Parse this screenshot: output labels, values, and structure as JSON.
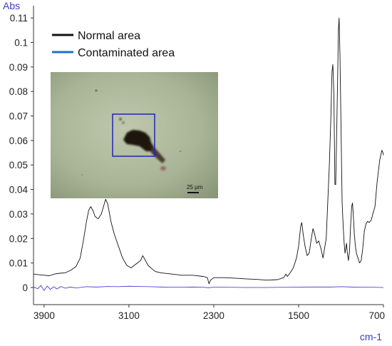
{
  "chart_data": {
    "type": "line",
    "ylabel": "Abs",
    "xlabel": "cm-1",
    "xlim": [
      4000,
      700
    ],
    "ylim": [
      -0.007,
      0.115
    ],
    "x_ticks": [
      3900,
      3100,
      2300,
      1500,
      700
    ],
    "y_ticks": [
      0,
      0.01,
      0.02,
      0.03,
      0.04,
      0.05,
      0.06,
      0.07,
      0.08,
      0.09,
      0.1,
      0.11
    ],
    "x_tick_labels": [
      "3900",
      "3100",
      "2300",
      "1500",
      "700"
    ],
    "y_tick_labels": [
      "0",
      "0.01",
      "0.02",
      "0.03",
      "0.04",
      "0.05",
      "0.06",
      "0.07",
      "0.08",
      "0.09",
      "0.1",
      "0.11"
    ],
    "grid": false,
    "legend_position": "top-left",
    "series": [
      {
        "name": "Normal area",
        "color": "#111111",
        "points": [
          [
            4000,
            0.0055
          ],
          [
            3950,
            0.0052
          ],
          [
            3900,
            0.005
          ],
          [
            3850,
            0.0048
          ],
          [
            3800,
            0.0055
          ],
          [
            3750,
            0.0058
          ],
          [
            3700,
            0.006
          ],
          [
            3650,
            0.007
          ],
          [
            3600,
            0.0085
          ],
          [
            3560,
            0.012
          ],
          [
            3530,
            0.019
          ],
          [
            3500,
            0.027
          ],
          [
            3480,
            0.0315
          ],
          [
            3460,
            0.033
          ],
          [
            3440,
            0.0315
          ],
          [
            3420,
            0.029
          ],
          [
            3390,
            0.028
          ],
          [
            3360,
            0.03
          ],
          [
            3340,
            0.033
          ],
          [
            3320,
            0.036
          ],
          [
            3300,
            0.034
          ],
          [
            3270,
            0.027
          ],
          [
            3240,
            0.022
          ],
          [
            3200,
            0.017
          ],
          [
            3160,
            0.012
          ],
          [
            3120,
            0.009
          ],
          [
            3080,
            0.008
          ],
          [
            3050,
            0.009
          ],
          [
            3020,
            0.01
          ],
          [
            2990,
            0.011
          ],
          [
            2970,
            0.013
          ],
          [
            2950,
            0.0115
          ],
          [
            2920,
            0.009
          ],
          [
            2880,
            0.0075
          ],
          [
            2850,
            0.0065
          ],
          [
            2800,
            0.006
          ],
          [
            2700,
            0.0055
          ],
          [
            2600,
            0.005
          ],
          [
            2500,
            0.005
          ],
          [
            2400,
            0.0045
          ],
          [
            2360,
            0.004
          ],
          [
            2345,
            0.0015
          ],
          [
            2330,
            0.003
          ],
          [
            2300,
            0.004
          ],
          [
            2200,
            0.004
          ],
          [
            2100,
            0.0038
          ],
          [
            2000,
            0.0035
          ],
          [
            1900,
            0.0033
          ],
          [
            1800,
            0.003
          ],
          [
            1700,
            0.0032
          ],
          [
            1640,
            0.004
          ],
          [
            1620,
            0.0055
          ],
          [
            1605,
            0.0045
          ],
          [
            1580,
            0.006
          ],
          [
            1550,
            0.008
          ],
          [
            1520,
            0.012
          ],
          [
            1500,
            0.017
          ],
          [
            1480,
            0.025
          ],
          [
            1470,
            0.0265
          ],
          [
            1455,
            0.021
          ],
          [
            1440,
            0.017
          ],
          [
            1420,
            0.013
          ],
          [
            1400,
            0.014
          ],
          [
            1380,
            0.02
          ],
          [
            1365,
            0.024
          ],
          [
            1350,
            0.022
          ],
          [
            1330,
            0.018
          ],
          [
            1310,
            0.019
          ],
          [
            1290,
            0.016
          ],
          [
            1270,
            0.012
          ],
          [
            1255,
            0.016
          ],
          [
            1240,
            0.02
          ],
          [
            1225,
            0.035
          ],
          [
            1210,
            0.05
          ],
          [
            1195,
            0.07
          ],
          [
            1185,
            0.088
          ],
          [
            1177,
            0.091
          ],
          [
            1168,
            0.08
          ],
          [
            1158,
            0.042
          ],
          [
            1150,
            0.042
          ],
          [
            1142,
            0.06
          ],
          [
            1132,
            0.085
          ],
          [
            1125,
            0.105
          ],
          [
            1118,
            0.11
          ],
          [
            1110,
            0.095
          ],
          [
            1100,
            0.065
          ],
          [
            1090,
            0.035
          ],
          [
            1080,
            0.025
          ],
          [
            1070,
            0.018
          ],
          [
            1062,
            0.014
          ],
          [
            1055,
            0.016
          ],
          [
            1048,
            0.018
          ],
          [
            1040,
            0.014
          ],
          [
            1030,
            0.011
          ],
          [
            1020,
            0.015
          ],
          [
            1010,
            0.025
          ],
          [
            1000,
            0.033
          ],
          [
            992,
            0.0345
          ],
          [
            985,
            0.03
          ],
          [
            975,
            0.022
          ],
          [
            965,
            0.017
          ],
          [
            955,
            0.014
          ],
          [
            940,
            0.012
          ],
          [
            925,
            0.01
          ],
          [
            910,
            0.011
          ],
          [
            895,
            0.016
          ],
          [
            880,
            0.023
          ],
          [
            865,
            0.026
          ],
          [
            850,
            0.027
          ],
          [
            835,
            0.0265
          ],
          [
            815,
            0.0275
          ],
          [
            800,
            0.03
          ],
          [
            780,
            0.033
          ],
          [
            760,
            0.043
          ],
          [
            735,
            0.052
          ],
          [
            715,
            0.056
          ],
          [
            705,
            0.055
          ],
          [
            700,
            0.054
          ]
        ]
      },
      {
        "name": "Contaminated area",
        "color": "#2f2fd0",
        "points": [
          [
            4000,
            0.0002
          ],
          [
            3960,
            -0.0005
          ],
          [
            3930,
            0.0008
          ],
          [
            3900,
            -0.0012
          ],
          [
            3870,
            0.0006
          ],
          [
            3840,
            -0.0008
          ],
          [
            3810,
            0.0003
          ],
          [
            3780,
            -0.0006
          ],
          [
            3740,
            0.0004
          ],
          [
            3700,
            -0.0003
          ],
          [
            3650,
            0.0002
          ],
          [
            3600,
            -0.0002
          ],
          [
            3500,
            0.0003
          ],
          [
            3400,
            0.0002
          ],
          [
            3300,
            0.0004
          ],
          [
            3200,
            0.0003
          ],
          [
            3100,
            0.0005
          ],
          [
            3000,
            0.0004
          ],
          [
            2900,
            0.0003
          ],
          [
            2800,
            0.0002
          ],
          [
            2700,
            0.0001
          ],
          [
            2600,
            0.0001
          ],
          [
            2500,
            0.0002
          ],
          [
            2400,
            0.0001
          ],
          [
            2350,
            -0.0001
          ],
          [
            2300,
            0.0001
          ],
          [
            2200,
            0.0001
          ],
          [
            2000,
            0.0
          ],
          [
            1800,
            0.0
          ],
          [
            1600,
            0.0001
          ],
          [
            1400,
            0.0002
          ],
          [
            1200,
            0.0002
          ],
          [
            1100,
            0.0003
          ],
          [
            1000,
            0.0002
          ],
          [
            900,
            0.0001
          ],
          [
            800,
            0.0001
          ],
          [
            700,
            0.0
          ]
        ]
      }
    ],
    "inset": {
      "type": "microscope-image",
      "scale_bar_label": "25 μm",
      "box_color": "#2323b8"
    }
  }
}
